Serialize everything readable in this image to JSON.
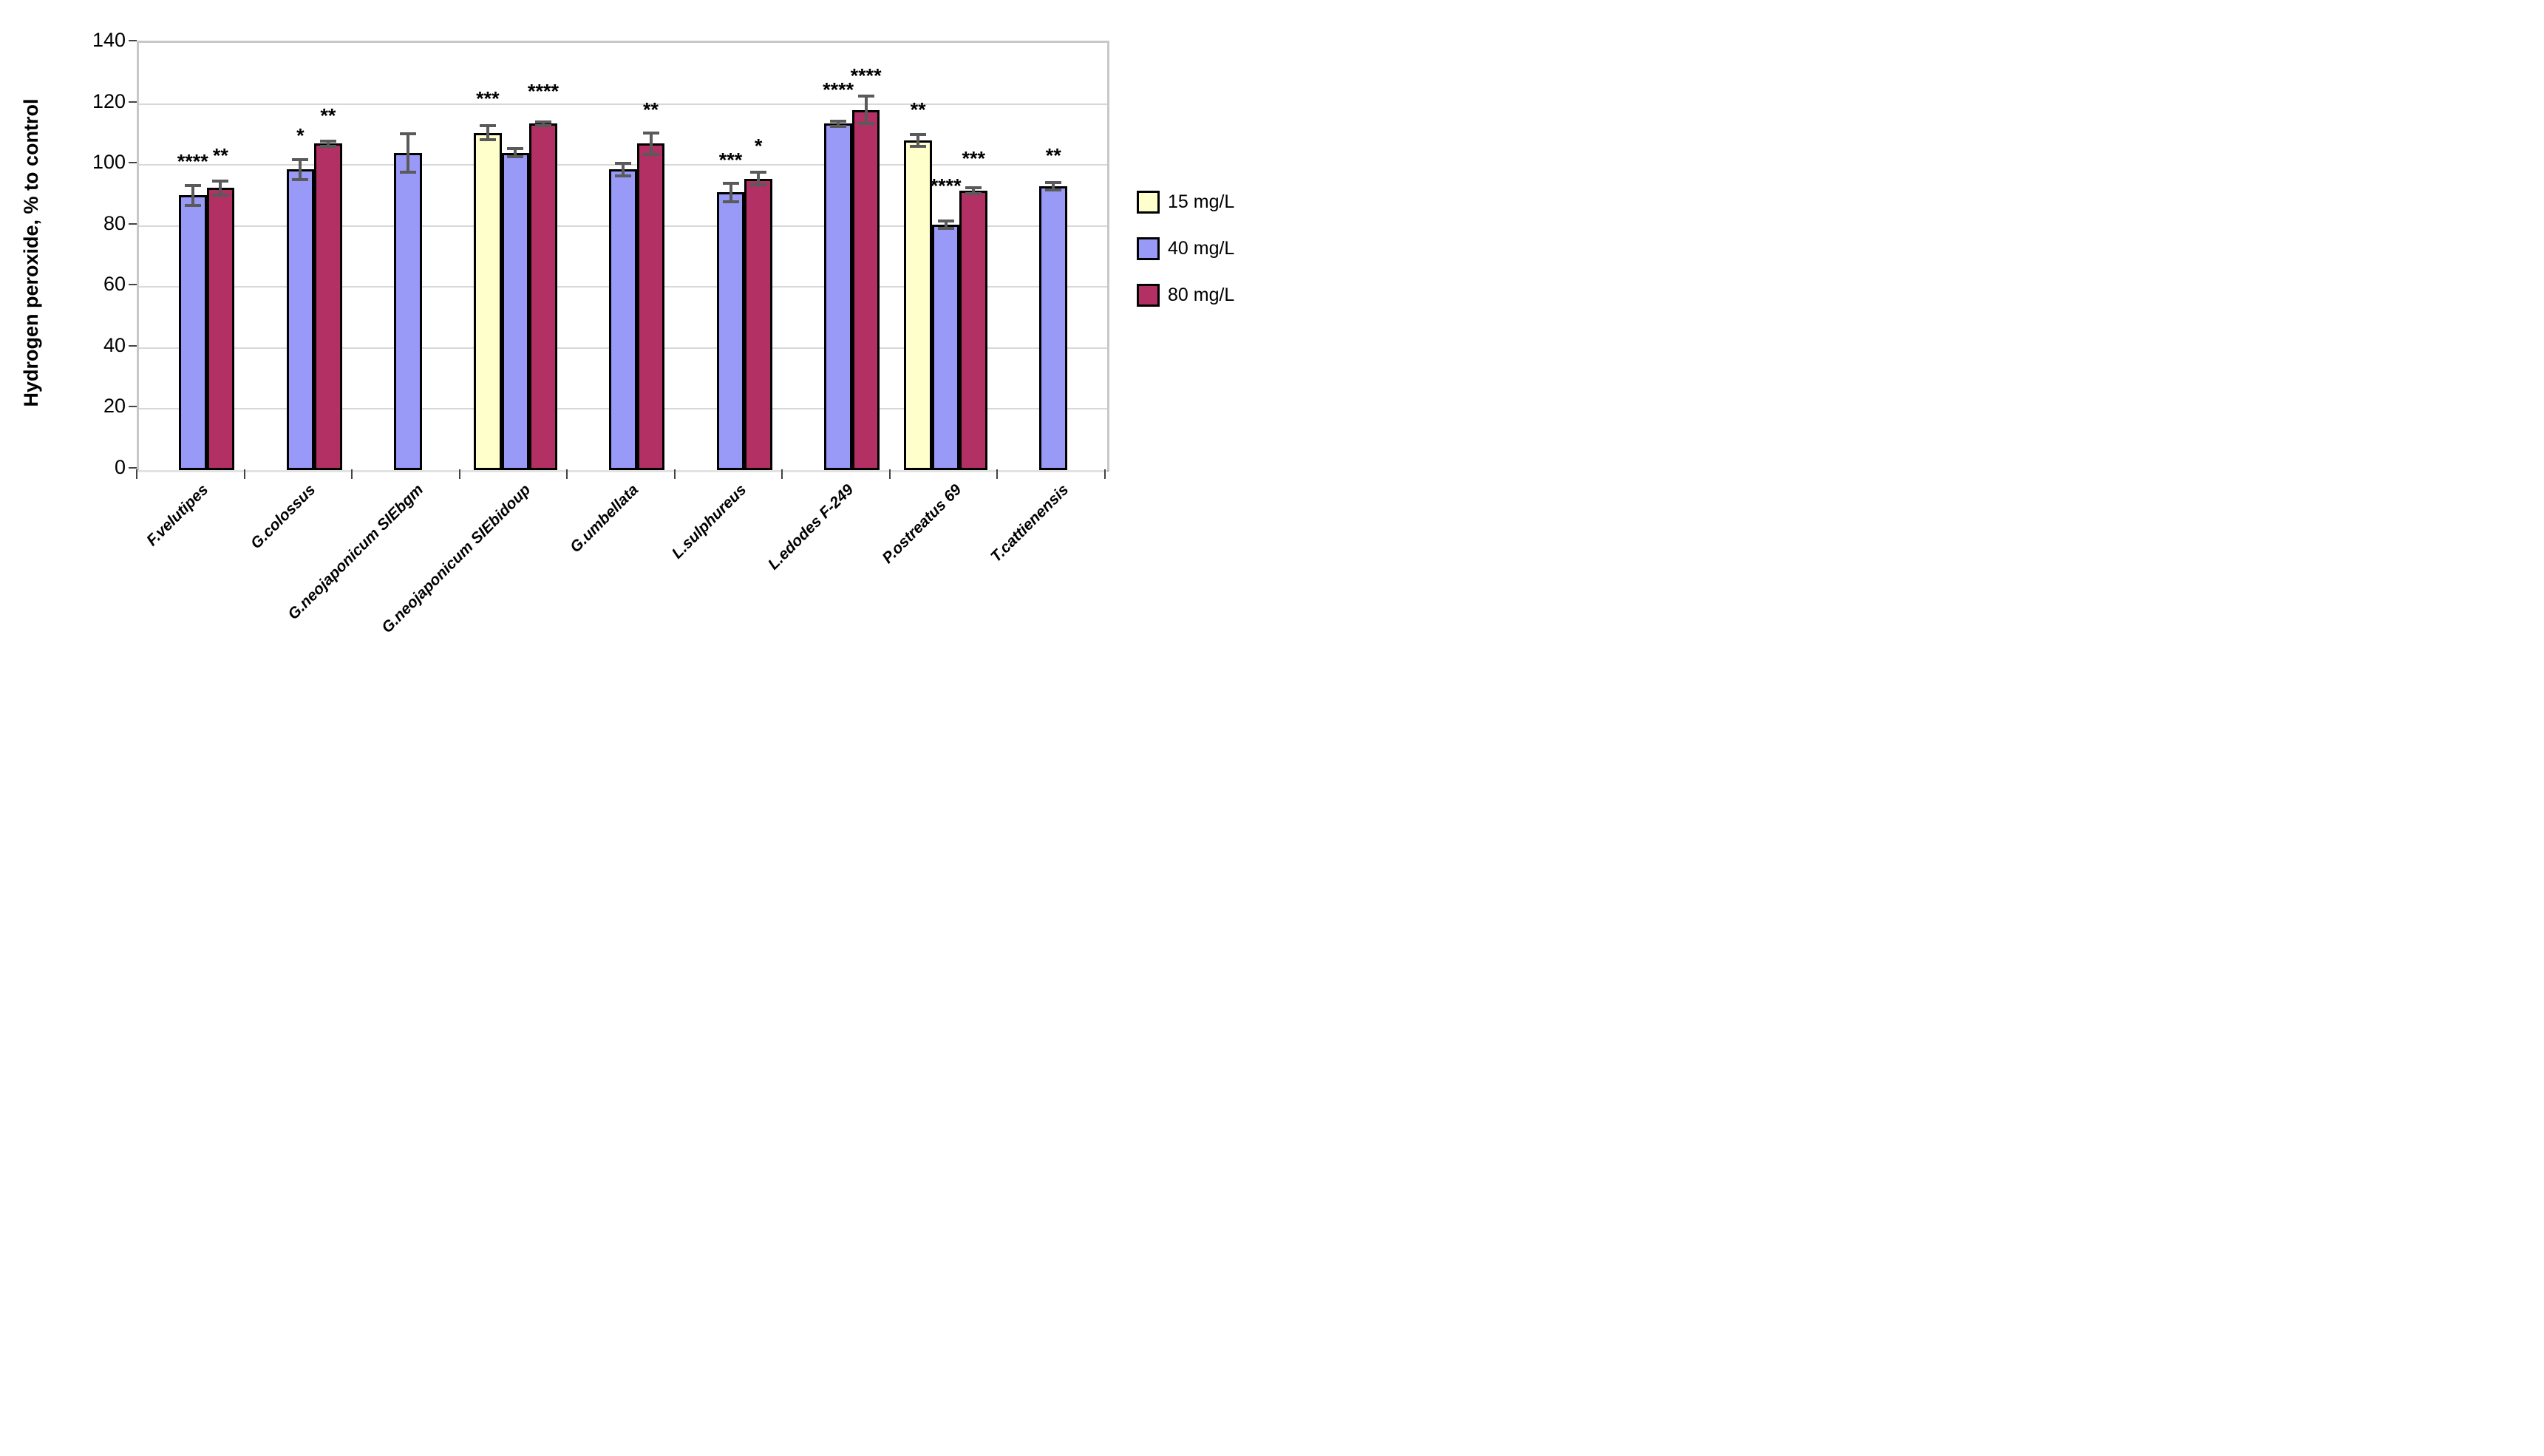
{
  "figure": {
    "y_axis_title": "Hydrogen peroxide, % to control"
  },
  "chart_data": {
    "type": "bar",
    "title": "",
    "xlabel": "",
    "ylabel": "Hydrogen peroxide, % to control",
    "ylim": [
      0,
      140
    ],
    "y_ticks": [
      0,
      20,
      40,
      60,
      80,
      100,
      120,
      140
    ],
    "grid": true,
    "legend_position": "right",
    "categories": [
      "F.velutipes",
      "G.colossus",
      "G.neojaponicum SIEbgm",
      "G.neojaponicum SIEbidoup",
      "G.umbellata",
      "L.sulphureus",
      "L.edodes F-249",
      "P.ostreatus 69",
      "T.cattienensis"
    ],
    "series": [
      {
        "name": "15 mg/L",
        "color": "#FFFFCC",
        "values": [
          null,
          null,
          null,
          110.5,
          null,
          null,
          null,
          108,
          null
        ],
        "errors": [
          null,
          null,
          null,
          2.3,
          null,
          null,
          null,
          2,
          null
        ],
        "stars": [
          null,
          null,
          null,
          "***",
          null,
          null,
          null,
          "**",
          null
        ],
        "stars_y": [
          null,
          null,
          null,
          122.5,
          null,
          null,
          null,
          119,
          null
        ]
      },
      {
        "name": "40 mg/L",
        "color": "#9999F8",
        "values": [
          90,
          98.5,
          104,
          104,
          98.5,
          91,
          113.5,
          80.5,
          93
        ],
        "errors": [
          3.3,
          3.2,
          6.3,
          1.3,
          2,
          3,
          0.8,
          1.2,
          1.2
        ],
        "stars": [
          "****",
          "*",
          null,
          null,
          null,
          "***",
          "****",
          "****",
          "**"
        ],
        "stars_y": [
          102,
          110.5,
          null,
          null,
          null,
          102.5,
          125.5,
          94,
          104
        ]
      },
      {
        "name": "80 mg/L",
        "color": "#B23064",
        "values": [
          92.5,
          107,
          null,
          113.5,
          107,
          95.5,
          118,
          91.5,
          null
        ],
        "errors": [
          2.3,
          0.8,
          null,
          0.7,
          3.5,
          2,
          4.5,
          1,
          null
        ],
        "stars": [
          "**",
          "**",
          null,
          "****",
          "**",
          "*",
          "****",
          "***",
          null
        ],
        "stars_y": [
          104,
          117,
          null,
          125,
          119,
          107,
          130,
          103,
          null
        ]
      }
    ]
  }
}
